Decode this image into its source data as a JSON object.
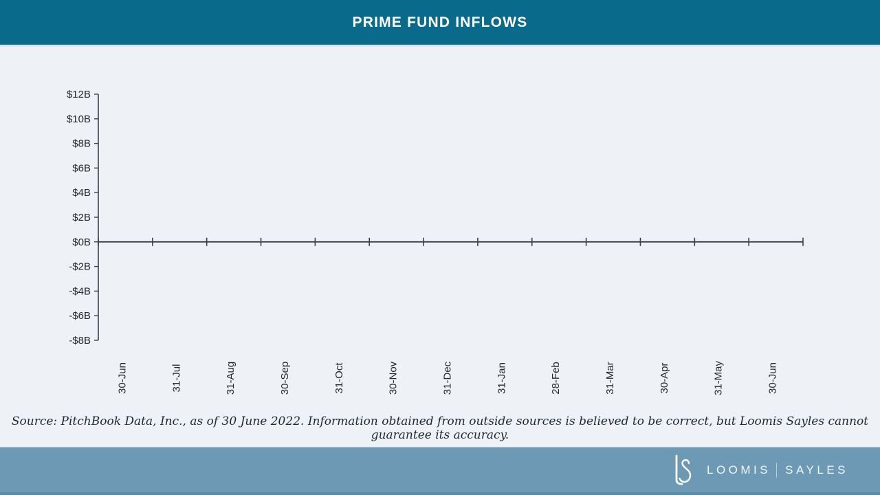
{
  "header": {
    "title": "PRIME FUND INFLOWS"
  },
  "chart_data": {
    "type": "bar",
    "title": "PRIME FUND INFLOWS",
    "categories": [
      "30-Jun",
      "31-Jul",
      "31-Aug",
      "30-Sep",
      "31-Oct",
      "30-Nov",
      "31-Dec",
      "31-Jan",
      "28-Feb",
      "31-Mar",
      "30-Apr",
      "31-May",
      "30-Jun"
    ],
    "values": [
      0,
      0,
      0,
      0,
      0,
      0,
      0,
      0,
      0,
      0,
      0,
      0,
      0
    ],
    "y_tick_labels": [
      "$12B",
      "$10B",
      "$8B",
      "$6B",
      "$4B",
      "$2B",
      "$0B",
      "-$2B",
      "-$4B",
      "-$6B",
      "-$8B"
    ],
    "y_tick_values": [
      12,
      10,
      8,
      6,
      4,
      2,
      0,
      -2,
      -4,
      -6,
      -8
    ],
    "ylim": [
      -8,
      12
    ],
    "xlabel": "",
    "ylabel": "",
    "grid": false,
    "legend": null
  },
  "source_note": "Source: PitchBook Data, Inc., as of 30 June 2022. Information obtained from outside sources is believed to be correct, but Loomis Sayles cannot guarantee its accuracy.",
  "footer": {
    "brand_left": "LOOMIS",
    "brand_right": "SAYLES",
    "logo": "ls-monogram"
  },
  "colors": {
    "header_bg": "#0a6a8c",
    "page_bg": "#eef1f6",
    "header_separator": "#d2e6f3",
    "axis_line": "#3b4046",
    "tick_label": "#24292e",
    "bar_fill": "#0a6a8c",
    "source_text": "#1c2933",
    "footer_bg": "#6d99b4",
    "footer_top_edge": "#93b2c5",
    "footer_bottom_strip": "#5d8aa5",
    "brand_text": "#f2f6f9"
  }
}
